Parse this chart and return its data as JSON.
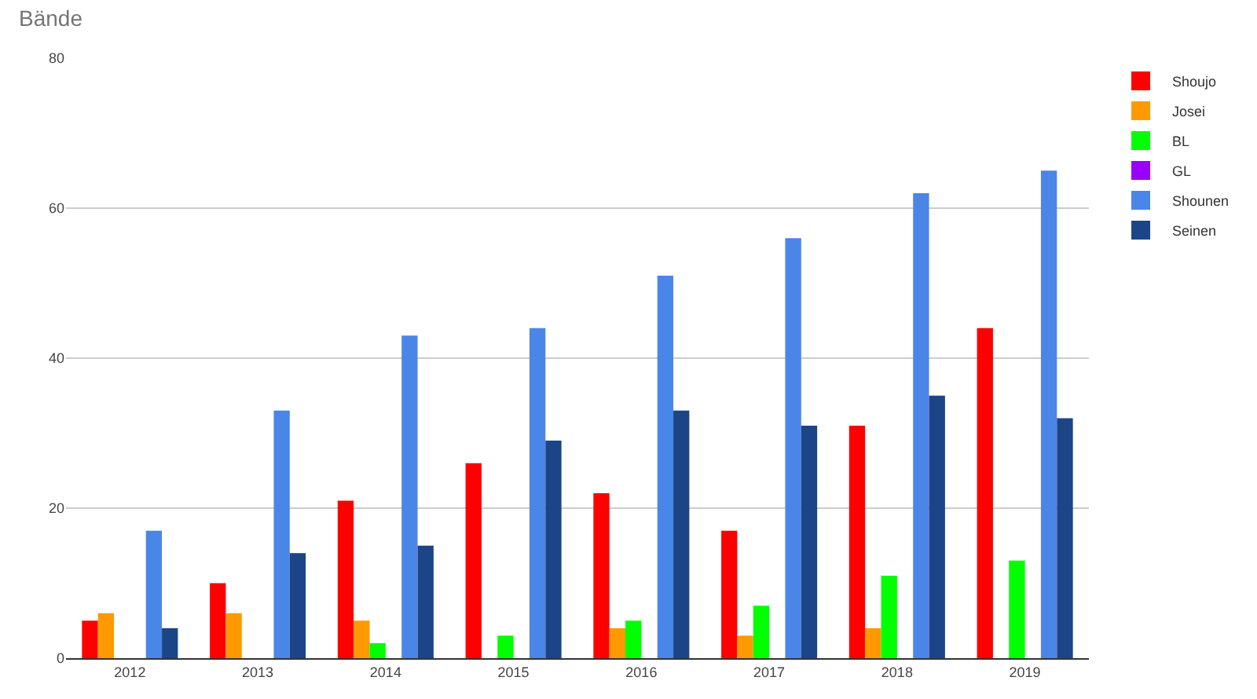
{
  "chart_data": {
    "type": "bar",
    "title": "Bände",
    "categories": [
      "2012",
      "2013",
      "2014",
      "2015",
      "2016",
      "2017",
      "2018",
      "2019"
    ],
    "series": [
      {
        "name": "Shoujo",
        "color": "#ff0000",
        "values": [
          5,
          10,
          21,
          26,
          22,
          17,
          31,
          44
        ]
      },
      {
        "name": "Josei",
        "color": "#ff9900",
        "values": [
          6,
          6,
          5,
          0,
          4,
          3,
          4,
          0
        ]
      },
      {
        "name": "BL",
        "color": "#00ff00",
        "values": [
          0,
          0,
          2,
          3,
          5,
          7,
          11,
          13
        ]
      },
      {
        "name": "GL",
        "color": "#9900ff",
        "values": [
          0,
          0,
          0,
          0,
          0,
          0,
          0,
          0
        ]
      },
      {
        "name": "Shounen",
        "color": "#4a86e8",
        "values": [
          17,
          33,
          43,
          44,
          51,
          56,
          62,
          65
        ]
      },
      {
        "name": "Seinen",
        "color": "#1c4587",
        "values": [
          4,
          14,
          15,
          29,
          33,
          31,
          35,
          32
        ]
      }
    ],
    "ylim": [
      0,
      80
    ],
    "yticks": [
      0,
      20,
      40,
      60,
      80
    ],
    "grid": "y",
    "legend": "right"
  }
}
